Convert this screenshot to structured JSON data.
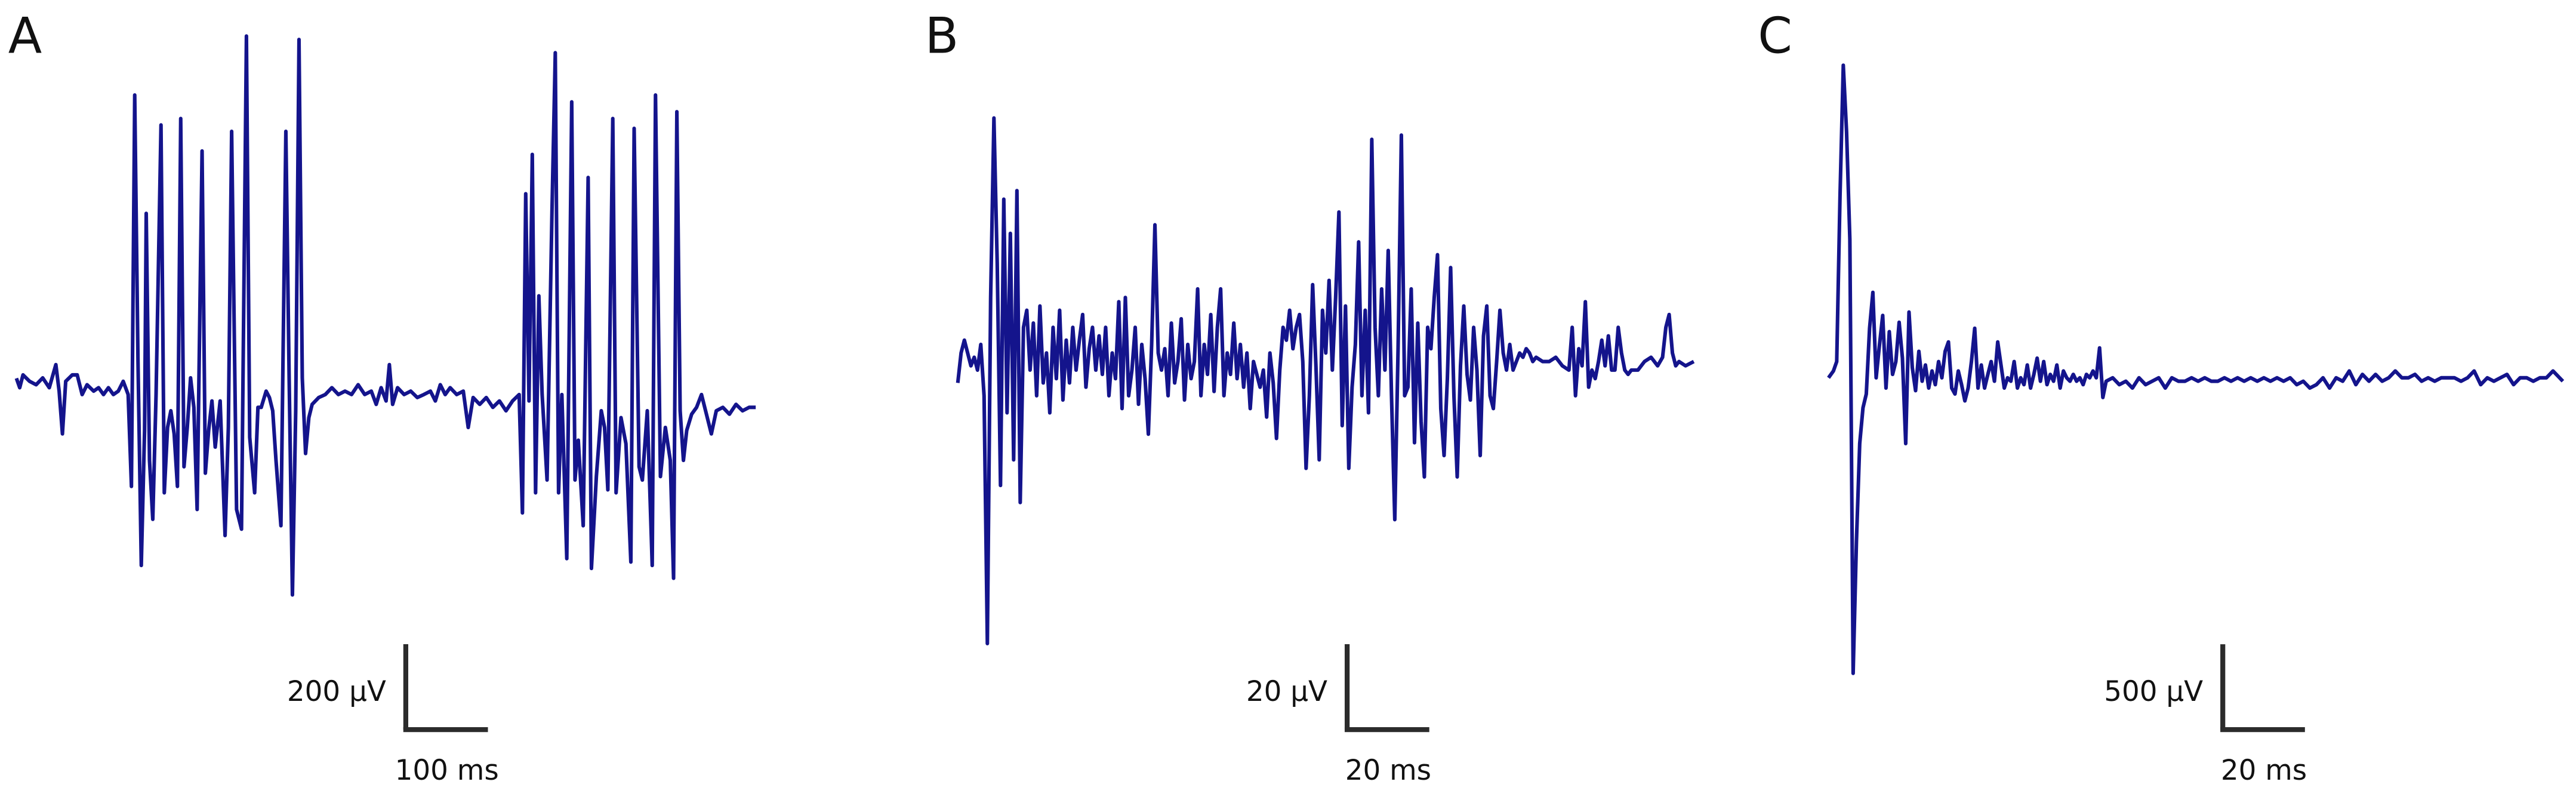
{
  "chart_data": [
    {
      "type": "line",
      "label": "A",
      "color": "#14148c",
      "xlim": [
        0,
        900
      ],
      "ylim": [
        -500,
        900
      ],
      "scale_bar": {
        "y": 200,
        "y_label": "200 µV",
        "x": 100,
        "x_label": "100 ms"
      },
      "x": [
        0,
        4,
        8,
        16,
        24,
        32,
        40,
        48,
        52,
        56,
        60,
        68,
        74,
        80,
        86,
        94,
        100,
        106,
        112,
        118,
        124,
        130,
        136,
        140,
        144,
        148,
        152,
        156,
        158,
        162,
        166,
        170,
        176,
        180,
        184,
        188,
        192,
        196,
        200,
        204,
        208,
        212,
        216,
        220,
        226,
        230,
        234,
        238,
        242,
        248,
        254,
        258,
        262,
        268,
        274,
        280,
        284,
        290,
        294,
        298,
        304,
        308,
        312,
        316,
        322,
        328,
        332,
        336,
        340,
        344,
        348,
        352,
        356,
        360,
        368,
        376,
        384,
        392,
        400,
        408,
        416,
        424,
        432,
        438,
        444,
        450,
        454,
        458,
        464,
        472,
        480,
        488,
        496,
        504,
        510,
        516,
        522,
        528,
        536,
        544,
        550,
        556,
        564,
        572,
        580,
        588,
        596,
        604,
        612,
        616,
        620,
        624,
        628,
        632,
        636,
        640,
        646,
        652,
        656,
        660,
        664,
        670,
        676,
        680,
        684,
        690,
        696,
        700,
        706,
        712,
        716,
        720,
        726,
        730,
        736,
        742,
        748,
        752,
        758,
        762,
        768,
        774,
        778,
        784,
        790,
        796,
        800,
        804,
        808,
        812,
        816,
        822,
        828,
        834,
        840,
        846,
        852,
        860,
        868,
        876,
        884,
        892,
        900
      ],
      "values": [
        30,
        8,
        38,
        23,
        15,
        31,
        8,
        62,
        0,
        -100,
        23,
        38,
        38,
        -8,
        15,
        0,
        8,
        -8,
        8,
        -8,
        0,
        23,
        -8,
        -223,
        693,
        69,
        -408,
        -92,
        416,
        -162,
        -300,
        -8,
        623,
        -238,
        -85,
        -46,
        -100,
        -223,
        638,
        -177,
        -85,
        31,
        -38,
        -277,
        562,
        -192,
        -92,
        -23,
        -131,
        -23,
        -338,
        -85,
        608,
        -277,
        -323,
        831,
        -108,
        -238,
        -38,
        -38,
        0,
        -15,
        -46,
        -162,
        -315,
        608,
        31,
        -477,
        -46,
        823,
        31,
        -146,
        -62,
        -31,
        -15,
        -8,
        8,
        -8,
        0,
        -8,
        15,
        -8,
        0,
        -31,
        8,
        -23,
        62,
        -31,
        8,
        -8,
        0,
        -15,
        -8,
        0,
        -23,
        15,
        -8,
        8,
        -8,
        0,
        -85,
        -15,
        -31,
        -15,
        -38,
        -23,
        -46,
        -23,
        -8,
        -285,
        462,
        -23,
        554,
        -238,
        223,
        -8,
        -208,
        423,
        792,
        -238,
        -8,
        -392,
        677,
        -208,
        -115,
        -315,
        500,
        -415,
        -200,
        -46,
        -85,
        -231,
        638,
        -238,
        -62,
        -123,
        -400,
        615,
        -177,
        -208,
        -46,
        -408,
        693,
        -200,
        -85,
        -162,
        -438,
        654,
        -46,
        -162,
        -92,
        -54,
        -38,
        -8,
        -54,
        -100,
        -46,
        -38,
        -54,
        -31,
        -46,
        -38,
        -38
      ]
    },
    {
      "type": "line",
      "label": "B",
      "color": "#14148c",
      "xlim": [
        0,
        180
      ],
      "ylim": [
        -70,
        70
      ],
      "scale_bar": {
        "y": 20,
        "y_label": "20 µV",
        "x": 20,
        "x_label": "20 ms"
      },
      "x": [
        0,
        0.8,
        1.6,
        2.4,
        3.2,
        4,
        4.8,
        5.6,
        6.4,
        7.2,
        8,
        8.8,
        9.6,
        10.4,
        11.2,
        12,
        12.8,
        13.6,
        14.4,
        15.2,
        16,
        16.8,
        17.6,
        18.4,
        19.2,
        20,
        20.8,
        21.6,
        22.4,
        23.2,
        24,
        24.8,
        25.6,
        26.4,
        27.2,
        28,
        28.8,
        29.6,
        30.4,
        31.2,
        32,
        32.8,
        33.6,
        34.4,
        35.2,
        36,
        36.8,
        37.6,
        38.4,
        39.2,
        40,
        40.8,
        41.6,
        42.4,
        43.2,
        44,
        44.8,
        45.6,
        46.4,
        47.2,
        48,
        48.8,
        49.6,
        50.4,
        51.2,
        52,
        52.8,
        53.6,
        54.4,
        55.2,
        56,
        56.8,
        57.6,
        58.4,
        59.2,
        60,
        60.8,
        61.6,
        62.4,
        63.2,
        64,
        64.8,
        65.6,
        66.4,
        67.2,
        68,
        68.8,
        69.6,
        70.4,
        71.2,
        72,
        72.8,
        73.6,
        74.4,
        75.2,
        76,
        76.8,
        77.6,
        78.4,
        79.2,
        80,
        80.8,
        81.6,
        82.4,
        83.2,
        84,
        84.8,
        85.6,
        86.4,
        87.2,
        88,
        88.8,
        89.6,
        90.4,
        91.2,
        92,
        92.8,
        93.6,
        94.4,
        95.2,
        96,
        96.8,
        97.6,
        98.4,
        99.2,
        100,
        100.8,
        101.6,
        102.4,
        103.2,
        104,
        104.8,
        105.6,
        106.4,
        107.2,
        108,
        108.8,
        109.6,
        110.4,
        111.2,
        112,
        112.8,
        113.6,
        114.4,
        115.2,
        116,
        116.8,
        117.6,
        118.4,
        119.2,
        120,
        120.8,
        121.6,
        122.4,
        123.2,
        124,
        124.8,
        125.6,
        126.4,
        127.2,
        128,
        128.8,
        129.6,
        130.4,
        131.2,
        132,
        132.8,
        133.6,
        134.4,
        135.2,
        136,
        136.8,
        137.6,
        138.4,
        139.2,
        140,
        140.8,
        142.4,
        144,
        145.6,
        147.2,
        148.8,
        149.6,
        150.4,
        151.2,
        152,
        152.8,
        153.6,
        154.4,
        155.2,
        156,
        156.8,
        157.6,
        158.4,
        159.2,
        160,
        160.8,
        161.6,
        162.4,
        163.2,
        164,
        165.6,
        167.2,
        168.8,
        170.4,
        171.6,
        172.4,
        173.2,
        174,
        174.8,
        175.6,
        177.2,
        179.2
      ],
      "values": [
        -5,
        2,
        5,
        2,
        -1,
        1,
        -2,
        4,
        -8,
        -66,
        15,
        57,
        23,
        -29,
        38,
        -12,
        30,
        -23,
        40,
        -33,
        8,
        12,
        -2,
        9,
        -8,
        13,
        -5,
        2,
        -12,
        8,
        -4,
        12,
        -9,
        5,
        -5,
        8,
        -2,
        5,
        11,
        -6,
        3,
        8,
        -2,
        6,
        -3,
        8,
        -8,
        2,
        -4,
        14,
        -11,
        15,
        -8,
        -2,
        8,
        -10,
        4,
        -4,
        -17,
        4,
        32,
        2,
        -2,
        3,
        -8,
        9,
        -5,
        0,
        10,
        -9,
        4,
        -4,
        0,
        17,
        -8,
        4,
        -3,
        11,
        -7,
        8,
        17,
        -8,
        2,
        -3,
        9,
        -4,
        4,
        -6,
        2,
        -11,
        0,
        -3,
        -6,
        -2,
        -13,
        2,
        -5,
        -18,
        -2,
        8,
        5,
        12,
        3,
        8,
        11,
        0,
        -25,
        -8,
        18,
        -1,
        -23,
        12,
        2,
        19,
        -2,
        15,
        35,
        -15,
        13,
        -25,
        -6,
        4,
        28,
        -8,
        12,
        -12,
        52,
        8,
        -8,
        17,
        -2,
        26,
        -8,
        -37,
        3,
        53,
        -8,
        -6,
        17,
        -19,
        9,
        -14,
        -27,
        8,
        3,
        15,
        25,
        -11,
        -22,
        -4,
        22,
        -8,
        -27,
        -1,
        13,
        -3,
        -9,
        8,
        -2,
        -22,
        6,
        13,
        -8,
        -11,
        0,
        12,
        2,
        -2,
        4,
        -2,
        0,
        2,
        1,
        3,
        2,
        0,
        1,
        0,
        0,
        1,
        -1,
        -2,
        8,
        -8,
        3,
        -1,
        14,
        -6,
        -2,
        -4,
        0,
        5,
        -1,
        6,
        -2,
        -2,
        8,
        2,
        -2,
        -3,
        -2,
        -2,
        0,
        1,
        -1,
        1,
        8,
        11,
        2,
        -1,
        0,
        -1,
        0
      ]
    },
    {
      "type": "line",
      "label": "C",
      "color": "#14148c",
      "xlim": [
        0,
        180
      ],
      "ylim": [
        -1800,
        2000
      ],
      "scale_bar": {
        "y": 500,
        "y_label": "500 µV",
        "x": 20,
        "x_label": "20 ms"
      },
      "x": [
        0.4,
        1.6,
        2.4,
        3.2,
        4,
        4.8,
        5.6,
        6.4,
        7.2,
        8,
        8.8,
        9.6,
        10.4,
        11.2,
        12,
        12.8,
        13.6,
        14.4,
        15.2,
        16,
        16.8,
        17.6,
        18.4,
        19.2,
        20,
        20.8,
        21.6,
        22.4,
        23.2,
        24,
        24.8,
        25.6,
        26.4,
        27.2,
        28,
        28.8,
        29.6,
        30.4,
        31.2,
        32,
        32.8,
        33.6,
        34.4,
        35.2,
        36,
        36.8,
        37.6,
        38.4,
        39.2,
        40,
        40.8,
        41.6,
        42.4,
        43.2,
        44,
        44.8,
        45.6,
        46.4,
        47.2,
        48,
        48.8,
        49.6,
        50.4,
        51.2,
        52,
        52.8,
        53.6,
        54.4,
        55.2,
        56,
        56.8,
        57.6,
        58.4,
        59.2,
        60,
        60.8,
        61.6,
        62.4,
        63.2,
        64,
        64.8,
        65.6,
        66.4,
        67.2,
        68,
        69.6,
        71.2,
        72.8,
        74.4,
        76,
        77.6,
        79.2,
        80.8,
        82.4,
        84,
        85.6,
        87.2,
        88.8,
        90.4,
        92,
        93.6,
        95.2,
        96.8,
        98.4,
        100,
        101.6,
        103.2,
        104.8,
        106.4,
        108,
        109.6,
        111.2,
        112.8,
        114.4,
        116,
        117.6,
        119.2,
        120.8,
        122.4,
        124,
        125.6,
        127.2,
        128.8,
        130.4,
        132,
        133.6,
        135.2,
        136.8,
        138.4,
        140,
        141.6,
        143.2,
        144.8,
        146.4,
        148,
        149.6,
        151.2,
        152.8,
        154.4,
        156,
        157.6,
        159.2,
        160.8,
        162.4,
        164,
        165.6,
        167.2,
        168.8,
        170.4,
        172,
        173.6,
        175.2,
        176.8,
        178.4,
        179.2
      ],
      "values": [
        0,
        40,
        95,
        1060,
        1830,
        1440,
        810,
        -1730,
        -960,
        -385,
        -175,
        -95,
        290,
        500,
        0,
        190,
        365,
        -60,
        270,
        20,
        95,
        325,
        115,
        -385,
        385,
        60,
        -75,
        155,
        -20,
        75,
        -60,
        40,
        -40,
        95,
        0,
        155,
        210,
        -60,
        -95,
        40,
        -40,
        -135,
        -60,
        95,
        290,
        -60,
        75,
        -60,
        20,
        95,
        -20,
        210,
        75,
        -60,
        0,
        -20,
        95,
        -60,
        0,
        -40,
        75,
        -60,
        20,
        115,
        -20,
        95,
        -40,
        20,
        -20,
        75,
        -60,
        40,
        0,
        -20,
        20,
        -20,
        0,
        -40,
        20,
        0,
        40,
        0,
        175,
        -115,
        -20,
        0,
        -40,
        -20,
        -60,
        0,
        -40,
        -20,
        0,
        -60,
        0,
        -20,
        -20,
        0,
        -20,
        0,
        -20,
        -20,
        0,
        -20,
        0,
        -20,
        0,
        -20,
        0,
        -20,
        0,
        -20,
        0,
        -40,
        -20,
        -60,
        -40,
        0,
        -60,
        0,
        -20,
        40,
        -40,
        20,
        -20,
        20,
        -20,
        0,
        40,
        0,
        0,
        20,
        -20,
        0,
        -20,
        0,
        0,
        0,
        -20,
        0,
        40,
        -40,
        0,
        -20,
        0,
        20,
        -40,
        0,
        0,
        -20,
        0,
        0,
        40,
        0,
        -20
      ]
    }
  ]
}
